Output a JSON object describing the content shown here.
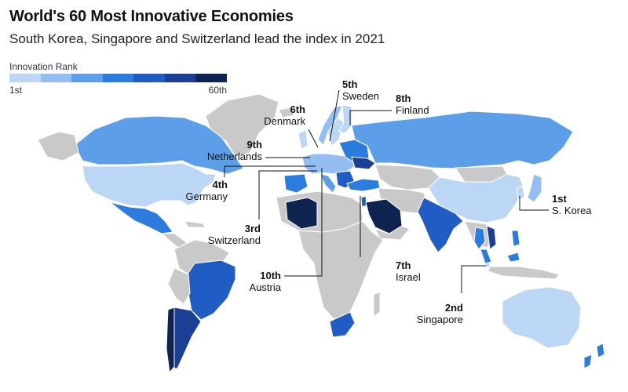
{
  "title": "World's 60 Most Innovative Economies",
  "subtitle": "South Korea, Singapore and Switzerland lead the index in 2021",
  "legend": {
    "title": "Innovation Rank",
    "min_label": "1st",
    "max_label": "60th",
    "colors": [
      "#bcd6f6",
      "#94bdf1",
      "#5d9ee9",
      "#2c7ce0",
      "#1f5cc4",
      "#1a3f95",
      "#0e2350"
    ]
  },
  "colors": {
    "not_ranked": "#c9c9c9",
    "ocean": "#ffffff",
    "border": "#ffffff"
  },
  "labels": [
    {
      "id": "sweden",
      "rank": "5th",
      "country": "Sweden"
    },
    {
      "id": "denmark",
      "rank": "6th",
      "country": "Denmark"
    },
    {
      "id": "finland",
      "rank": "8th",
      "country": "Finland"
    },
    {
      "id": "netherlands",
      "rank": "9th",
      "country": "Netherlands"
    },
    {
      "id": "germany",
      "rank": "4th",
      "country": "Germany"
    },
    {
      "id": "switzerland",
      "rank": "3rd",
      "country": "Switzerland"
    },
    {
      "id": "austria",
      "rank": "10th",
      "country": "Austria"
    },
    {
      "id": "israel",
      "rank": "7th",
      "country": "Israel"
    },
    {
      "id": "skorea",
      "rank": "1st",
      "country": "S. Korea"
    },
    {
      "id": "singapore",
      "rank": "2nd",
      "country": "Singapore"
    }
  ]
}
